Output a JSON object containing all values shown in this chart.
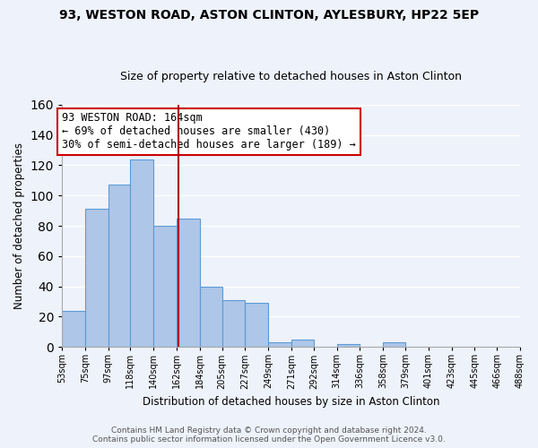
{
  "title": "93, WESTON ROAD, ASTON CLINTON, AYLESBURY, HP22 5EP",
  "subtitle": "Size of property relative to detached houses in Aston Clinton",
  "xlabel": "Distribution of detached houses by size in Aston Clinton",
  "ylabel": "Number of detached properties",
  "bar_edges": [
    53,
    75,
    97,
    118,
    140,
    162,
    184,
    205,
    227,
    249,
    271,
    292,
    314,
    336,
    358,
    379,
    401,
    423,
    445,
    466,
    488
  ],
  "bar_heights": [
    24,
    91,
    107,
    124,
    80,
    85,
    40,
    31,
    29,
    3,
    5,
    0,
    2,
    0,
    3,
    0,
    0,
    0,
    0,
    0
  ],
  "bar_color": "#aec6e8",
  "bar_edge_color": "#5b9bd5",
  "vline_x": 164,
  "vline_color": "#aa0000",
  "annotation_lines": [
    "93 WESTON ROAD: 164sqm",
    "← 69% of detached houses are smaller (430)",
    "30% of semi-detached houses are larger (189) →"
  ],
  "annotation_box_color": "#ffffff",
  "annotation_box_edge_color": "#cc0000",
  "ylim": [
    0,
    160
  ],
  "tick_labels": [
    "53sqm",
    "75sqm",
    "97sqm",
    "118sqm",
    "140sqm",
    "162sqm",
    "184sqm",
    "205sqm",
    "227sqm",
    "249sqm",
    "271sqm",
    "292sqm",
    "314sqm",
    "336sqm",
    "358sqm",
    "379sqm",
    "401sqm",
    "423sqm",
    "445sqm",
    "466sqm",
    "488sqm"
  ],
  "footer_lines": [
    "Contains HM Land Registry data © Crown copyright and database right 2024.",
    "Contains public sector information licensed under the Open Government Licence v3.0."
  ],
  "background_color": "#eef2fa",
  "grid_color": "#ffffff",
  "title_fontsize": 10,
  "subtitle_fontsize": 9,
  "axis_label_fontsize": 8.5,
  "tick_fontsize": 7,
  "annotation_fontsize": 8.5,
  "footer_fontsize": 6.5
}
